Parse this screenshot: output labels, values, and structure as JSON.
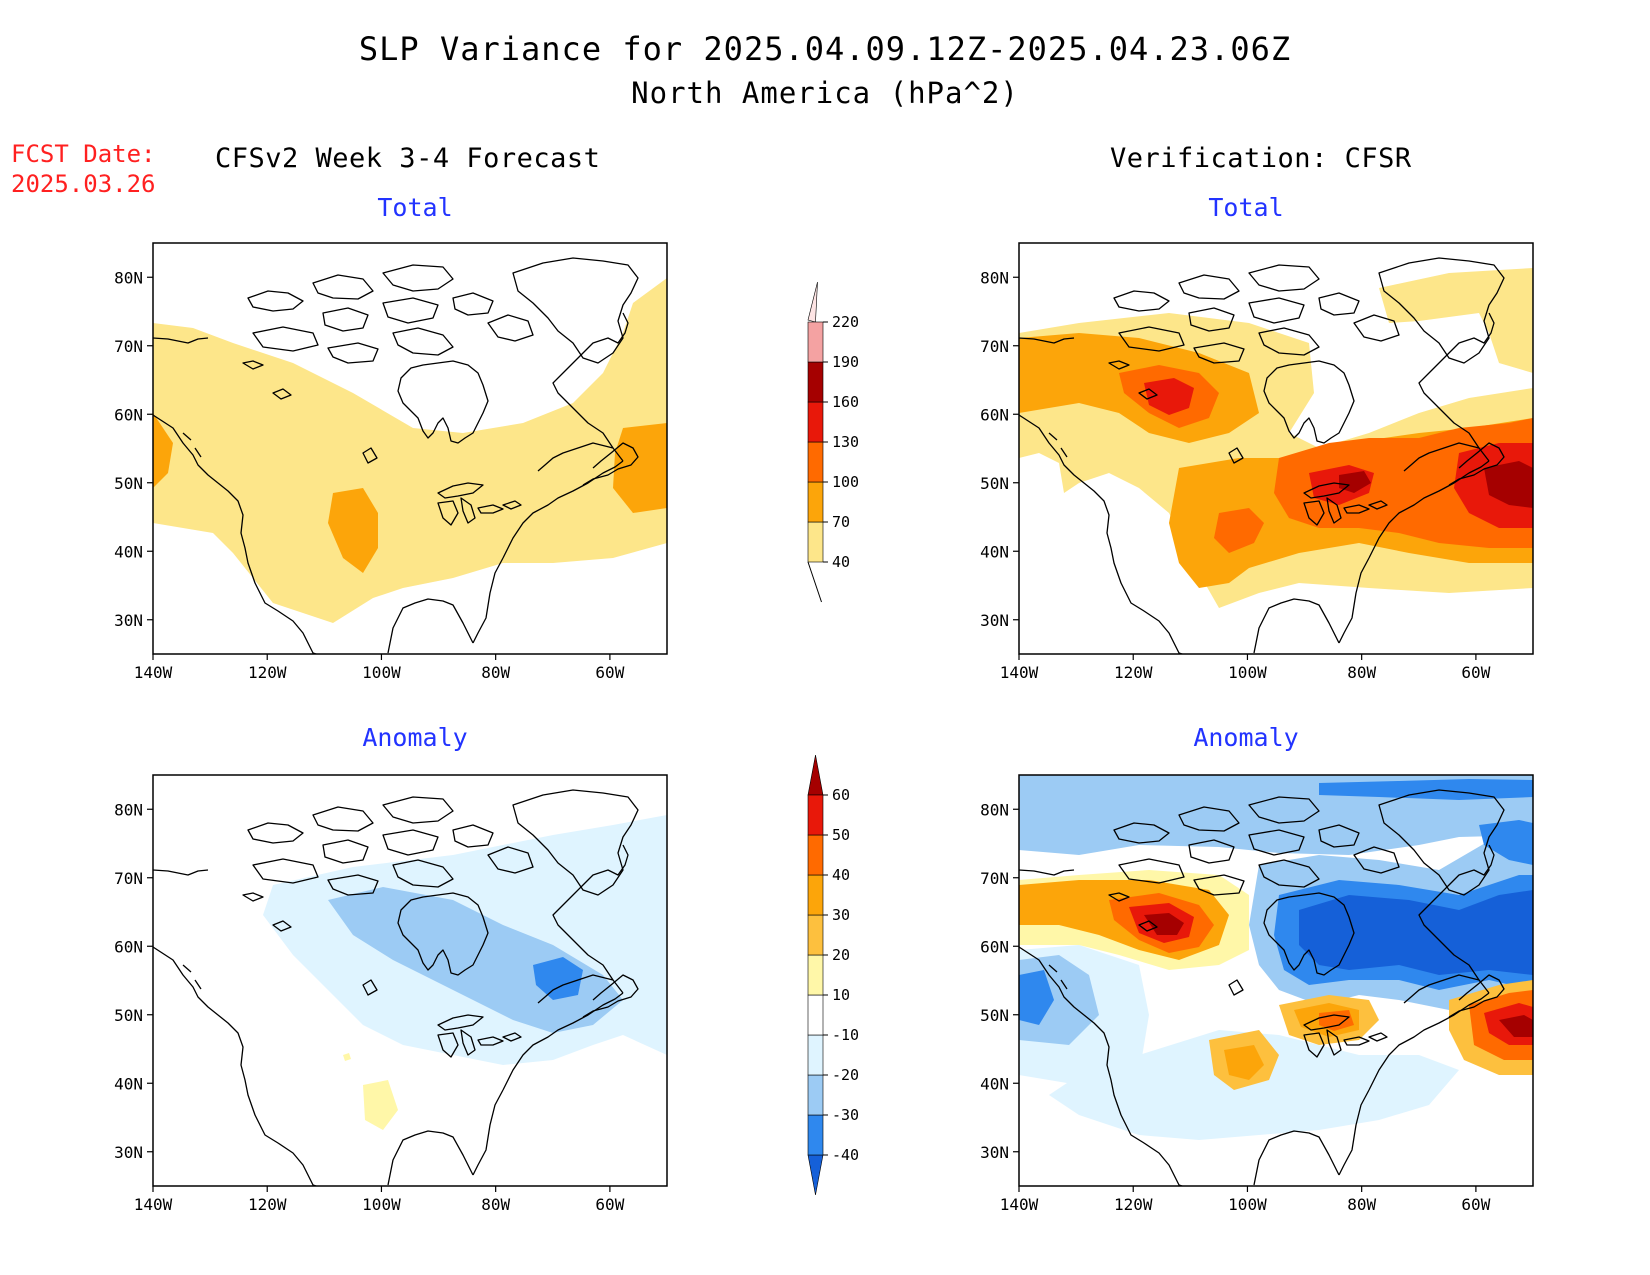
{
  "header": {
    "title": "SLP Variance for 2025.04.09.12Z-2025.04.23.06Z",
    "subtitle": "North America (hPa^2)"
  },
  "fcst": {
    "label": "FCST Date:",
    "date": "2025.03.26"
  },
  "columns": {
    "left": "CFSv2 Week 3-4 Forecast",
    "right": "Verification: CFSR"
  },
  "panels": {
    "total_label": "Total",
    "anomaly_label": "Anomaly"
  },
  "axes": {
    "lon_labels": [
      "140W",
      "120W",
      "100W",
      "80W",
      "60W"
    ],
    "lat_labels": [
      "80N",
      "70N",
      "60N",
      "50N",
      "40N",
      "30N"
    ]
  },
  "colorbars": {
    "total": {
      "levels": [
        "40",
        "70",
        "100",
        "130",
        "160",
        "190",
        "220"
      ],
      "colors": [
        "#fde68a",
        "#fca50a",
        "#ff6a00",
        "#e8180a",
        "#a50000",
        "#f4a2a2",
        "#fde4e4"
      ]
    },
    "anomaly": {
      "levels": [
        "-40",
        "-30",
        "-20",
        "-10",
        "10",
        "20",
        "30",
        "40",
        "50",
        "60"
      ],
      "colors": [
        "#1560d8",
        "#2f88ee",
        "#9ccbf4",
        "#dff4ff",
        "#ffffff",
        "#fff7a8",
        "#fdc03e",
        "#fca50a",
        "#ff6a00",
        "#e8180a",
        "#a50000"
      ]
    }
  }
}
